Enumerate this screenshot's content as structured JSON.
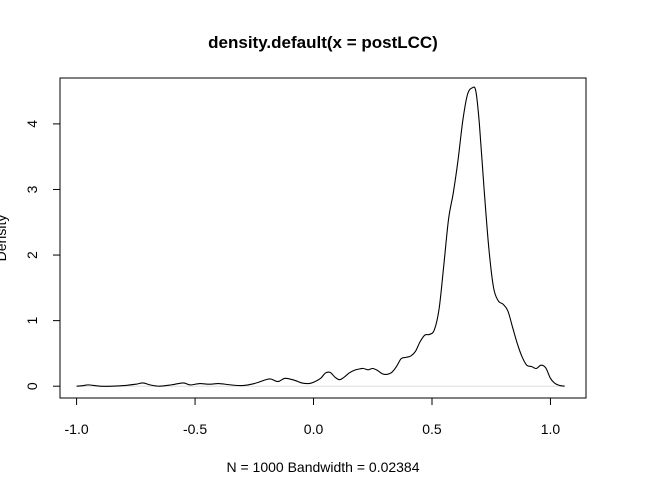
{
  "chart_data": {
    "type": "line",
    "title": "density.default(x = postLCC)",
    "xlabel": "N = 1000   Bandwidth = 0.02384",
    "ylabel": "Density",
    "xlim": [
      -1.07,
      1.15
    ],
    "ylim": [
      -0.18,
      4.7
    ],
    "x_ticks": [
      -1.0,
      -0.5,
      0.0,
      0.5,
      1.0
    ],
    "x_tick_labels": [
      "-1.0",
      "-0.5",
      "0.0",
      "0.5",
      "1.0"
    ],
    "y_ticks": [
      0,
      1,
      2,
      3,
      4
    ],
    "y_tick_labels": [
      "0",
      "1",
      "2",
      "3",
      "4"
    ],
    "grid": false,
    "series": [
      {
        "x": [
          -1.0,
          -0.97,
          -0.95,
          -0.9,
          -0.85,
          -0.8,
          -0.75,
          -0.72,
          -0.69,
          -0.65,
          -0.6,
          -0.55,
          -0.52,
          -0.48,
          -0.44,
          -0.4,
          -0.35,
          -0.3,
          -0.25,
          -0.2,
          -0.18,
          -0.15,
          -0.12,
          -0.08,
          -0.05,
          -0.02,
          0.0,
          0.03,
          0.05,
          0.07,
          0.09,
          0.11,
          0.13,
          0.15,
          0.17,
          0.19,
          0.21,
          0.23,
          0.25,
          0.27,
          0.29,
          0.31,
          0.33,
          0.35,
          0.37,
          0.39,
          0.41,
          0.43,
          0.45,
          0.47,
          0.49,
          0.51,
          0.53,
          0.55,
          0.57,
          0.59,
          0.61,
          0.63,
          0.65,
          0.67,
          0.685,
          0.7,
          0.72,
          0.74,
          0.76,
          0.78,
          0.8,
          0.82,
          0.84,
          0.86,
          0.88,
          0.9,
          0.92,
          0.94,
          0.96,
          0.98,
          1.0,
          1.02,
          1.04,
          1.06
        ],
        "y": [
          0.0,
          0.01,
          0.02,
          0.0,
          0.0,
          0.01,
          0.03,
          0.05,
          0.02,
          0.0,
          0.02,
          0.05,
          0.02,
          0.04,
          0.03,
          0.04,
          0.02,
          0.01,
          0.04,
          0.1,
          0.11,
          0.07,
          0.12,
          0.09,
          0.05,
          0.04,
          0.06,
          0.12,
          0.2,
          0.21,
          0.14,
          0.1,
          0.14,
          0.2,
          0.24,
          0.26,
          0.27,
          0.25,
          0.27,
          0.24,
          0.19,
          0.18,
          0.21,
          0.3,
          0.42,
          0.44,
          0.46,
          0.53,
          0.68,
          0.78,
          0.79,
          0.86,
          1.18,
          1.85,
          2.55,
          2.95,
          3.45,
          4.05,
          4.45,
          4.55,
          4.5,
          4.0,
          3.0,
          2.1,
          1.5,
          1.3,
          1.25,
          1.15,
          0.9,
          0.65,
          0.45,
          0.32,
          0.3,
          0.27,
          0.32,
          0.28,
          0.12,
          0.04,
          0.01,
          0.0
        ]
      }
    ]
  }
}
